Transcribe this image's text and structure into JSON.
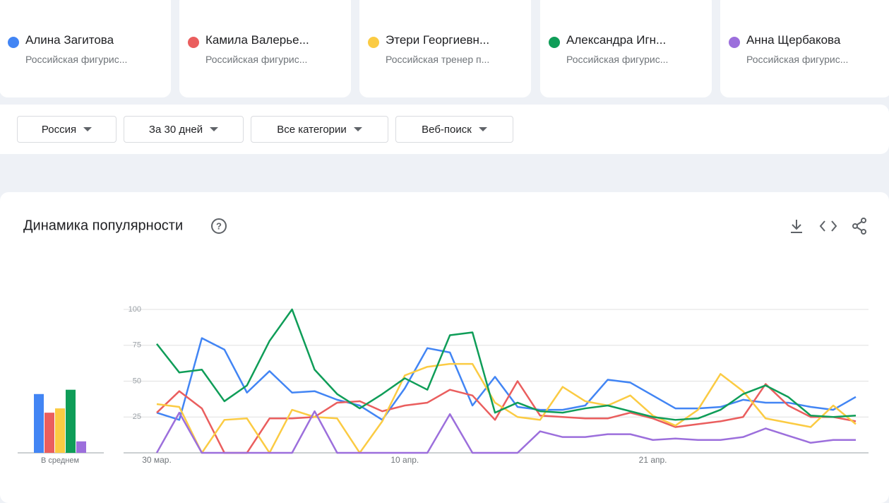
{
  "cards": [
    {
      "description": "Российская фигурис..."
    },
    {
      "description": "Российская фигурис..."
    },
    {
      "description": "Российская тренер п..."
    },
    {
      "description": "Российская фигурис..."
    },
    {
      "description": "Российская фигурис..."
    }
  ],
  "filters": [
    "Россия",
    "За 30 дней",
    "Все категории",
    "Веб-поиск"
  ],
  "panel_title": "Динамика популярности",
  "chart_data": [
    {
      "type": "bar",
      "x_label": "В среднем",
      "values": [
        41,
        28,
        31,
        44,
        8
      ],
      "colors": [
        "#4285f4",
        "#ea5e5e",
        "#fbcb43",
        "#0f9d58",
        "#9c6fdc"
      ],
      "ylim": [
        0,
        100
      ]
    },
    {
      "type": "line",
      "categories": [
        "30 мар.",
        null,
        null,
        null,
        null,
        null,
        null,
        null,
        null,
        null,
        null,
        "10 апр.",
        null,
        null,
        null,
        null,
        null,
        null,
        null,
        null,
        null,
        null,
        "21 апр.",
        null,
        null,
        null,
        null,
        null,
        null,
        null,
        null,
        null
      ],
      "ylim": [
        0,
        100
      ],
      "yticks": [
        25,
        50,
        75,
        100
      ],
      "grid": true,
      "series": [
        {
          "name": "Алина Загитова",
          "color": "#4285f4",
          "values": [
            28,
            23,
            80,
            72,
            42,
            57,
            42,
            43,
            37,
            33,
            23,
            45,
            73,
            70,
            33,
            53,
            32,
            30,
            30,
            33,
            51,
            49,
            40,
            31,
            31,
            32,
            37,
            35,
            35,
            32,
            30,
            39
          ]
        },
        {
          "name": "Камила Валерье...",
          "color": "#ea5e5e",
          "values": [
            28,
            43,
            31,
            0,
            0,
            24,
            24,
            25,
            35,
            36,
            29,
            33,
            35,
            44,
            40,
            23,
            50,
            26,
            25,
            24,
            24,
            28,
            24,
            18,
            20,
            22,
            25,
            48,
            33,
            25,
            25,
            22
          ]
        },
        {
          "name": "Этери Георгиевн...",
          "color": "#fbcb43",
          "values": [
            34,
            32,
            0,
            23,
            24,
            0,
            30,
            25,
            24,
            0,
            22,
            54,
            60,
            62,
            62,
            35,
            25,
            23,
            46,
            36,
            33,
            40,
            26,
            19,
            30,
            55,
            43,
            24,
            21,
            18,
            33,
            20
          ]
        },
        {
          "name": "Александра Игн...",
          "color": "#0f9d58",
          "values": [
            76,
            56,
            58,
            36,
            47,
            78,
            100,
            58,
            41,
            31,
            41,
            52,
            44,
            82,
            84,
            28,
            35,
            29,
            28,
            31,
            33,
            29,
            25,
            23,
            24,
            30,
            41,
            47,
            39,
            26,
            25,
            26
          ]
        },
        {
          "name": "Анна Щербакова",
          "color": "#9c6fdc",
          "values": [
            0,
            28,
            0,
            0,
            0,
            0,
            0,
            29,
            0,
            0,
            0,
            0,
            0,
            27,
            0,
            0,
            0,
            15,
            11,
            11,
            13,
            13,
            9,
            10,
            9,
            9,
            11,
            17,
            12,
            7,
            9,
            9
          ]
        }
      ]
    }
  ]
}
